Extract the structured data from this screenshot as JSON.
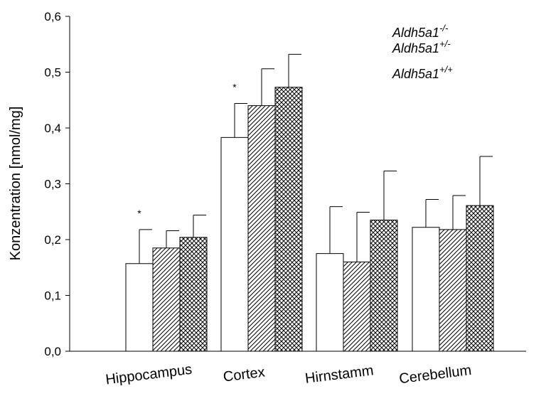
{
  "chart_data": {
    "type": "bar",
    "title": "",
    "xlabel": "",
    "ylabel": "Konzentration [nmol/mg]",
    "ylim": [
      0,
      0.6
    ],
    "yticks": [
      "0,0",
      "0,1",
      "0,2",
      "0,3",
      "0,4",
      "0,5",
      "0,6"
    ],
    "grid": false,
    "legend_position": "top-right",
    "categories": [
      "Hippocampus",
      "Cortex",
      "Hirnstamm",
      "Cerebellum"
    ],
    "significance_marker": "*",
    "significant": [
      true,
      true,
      false,
      false
    ],
    "series": [
      {
        "name_base": "Aldh5a1",
        "name_sup": "-/-",
        "pattern": "white",
        "values": [
          0.157,
          0.383,
          0.175,
          0.222
        ],
        "errors": [
          0.061,
          0.061,
          0.084,
          0.05
        ]
      },
      {
        "name_base": "Aldh5a1",
        "name_sup": "+/-",
        "pattern": "diagonal-hatch",
        "values": [
          0.185,
          0.44,
          0.16,
          0.218
        ],
        "errors": [
          0.031,
          0.066,
          0.089,
          0.061
        ]
      },
      {
        "name_base": "Aldh5a1",
        "name_sup": "+/+",
        "pattern": "crosshatch",
        "values": [
          0.204,
          0.473,
          0.235,
          0.261
        ],
        "errors": [
          0.04,
          0.059,
          0.088,
          0.088
        ]
      }
    ]
  }
}
